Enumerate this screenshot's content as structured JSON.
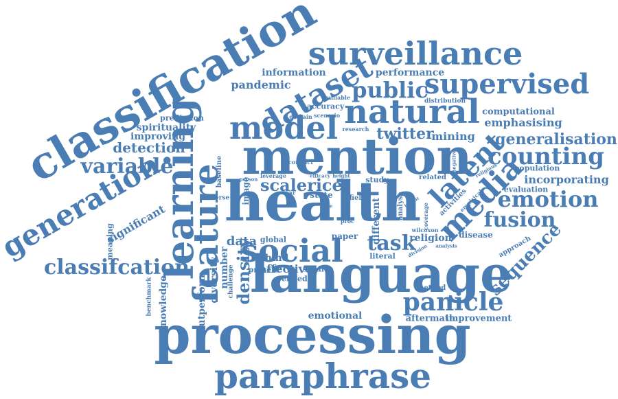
{
  "words": {
    "classification": "classification",
    "surveillance": "surveillance",
    "dataset": "dataset",
    "supervised": "supervised",
    "information": "information",
    "performance": "performance",
    "pandemic": "pandemic",
    "public": "public",
    "natural": "natural",
    "model": "model",
    "learning": "learning",
    "mention": "mention",
    "health": "health",
    "language": "language",
    "processing": "processing",
    "paraphrase": "paraphrase",
    "generation": "generation",
    "variable": "variable",
    "detection": "detection",
    "improving": "improving",
    "spirituality": "spirituality",
    "prediction": "prediction",
    "feature": "feature",
    "significant": "significant",
    "meaning": "meaning",
    "classifcation": "classifcation",
    "social": "social",
    "scale": "scale",
    "rice": "rice",
    "task": "task",
    "twitter": "twitter",
    "mining": "mining",
    "latent": "latent",
    "media": "media",
    "counting": "counting",
    "generalisation": "generalisation",
    "computational": "computational",
    "emphasising": "emphasising",
    "emotion": "emotion",
    "fusion": "fusion",
    "incorporating": "incorporating",
    "population": "population",
    "evaluation": "evaluation",
    "sequence": "sequence",
    "panicle": "panicle",
    "aftermath": "aftermath",
    "improvement": "improvement",
    "emotional": "emotional",
    "density": "density",
    "affective": "affective",
    "studies": "studies",
    "refined": "refined",
    "present": "present",
    "nhmd": "nhmd",
    "data": "data",
    "global": "global",
    "paper": "paper",
    "literal": "literal",
    "religion": "religion",
    "disease": "disease",
    "approach": "approach",
    "method": "method",
    "diversity": "diversity",
    "number": "number",
    "outperform": "outperform",
    "knowledge": "knowledge",
    "benchmark": "benchmark",
    "challenge": "challenge",
    "diverse": "diverse",
    "baseline": "baseline",
    "image": "image",
    "person": "person",
    "leverage": "leverage",
    "conduct": "conduct",
    "domain": "domain",
    "scenario": "scenario",
    "accuracy": "accuracy",
    "available": "available",
    "research": "research",
    "distribution": "distribution",
    "channel": "channel",
    "negative": "negative",
    "religious": "religious",
    "activities": "activities",
    "empirical": "empirical",
    "related": "related",
    "coverage": "coverage",
    "analyse": "analyse",
    "different": "different",
    "wilcoxon": "wilcoxon",
    "division": "division",
    "analysis": "analysis",
    "state": "state",
    "study": "study",
    "field": "field",
    "novel": "novel",
    "proc": "proc",
    "vsar": "vsar",
    "height": "height",
    "efficacy": "efficacy",
    "fine": "fine",
    "benefit": "benefit"
  },
  "colors": {
    "text": "#4a7db3",
    "background": "#ffffff"
  }
}
